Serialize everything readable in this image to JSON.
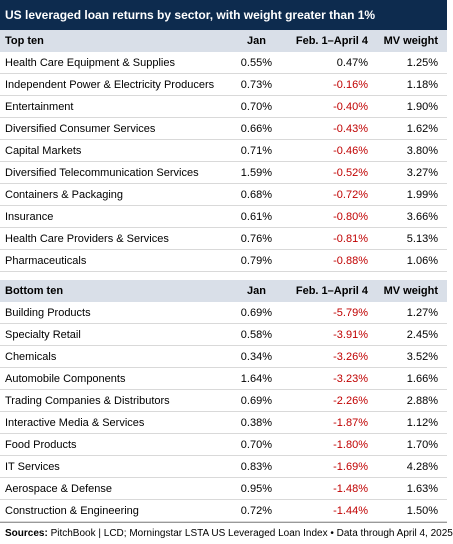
{
  "title": "US leveraged loan returns by sector, with weight greater than 1%",
  "sections": [
    {
      "header": [
        "Top ten",
        "Jan",
        "Feb. 1–April 4",
        "MV weight"
      ],
      "rows": [
        [
          "Health Care Equipment & Supplies",
          "0.55%",
          "0.47%",
          "1.25%"
        ],
        [
          "Independent Power & Electricity Producers",
          "0.73%",
          "-0.16%",
          "1.18%"
        ],
        [
          "Entertainment",
          "0.70%",
          "-0.40%",
          "1.90%"
        ],
        [
          "Diversified Consumer Services",
          "0.66%",
          "-0.43%",
          "1.62%"
        ],
        [
          "Capital Markets",
          "0.71%",
          "-0.46%",
          "3.80%"
        ],
        [
          "Diversified Telecommunication Services",
          "1.59%",
          "-0.52%",
          "3.27%"
        ],
        [
          "Containers & Packaging",
          "0.68%",
          "-0.72%",
          "1.99%"
        ],
        [
          "Insurance",
          "0.61%",
          "-0.80%",
          "3.66%"
        ],
        [
          "Health Care Providers & Services",
          "0.76%",
          "-0.81%",
          "5.13%"
        ],
        [
          "Pharmaceuticals",
          "0.79%",
          "-0.88%",
          "1.06%"
        ]
      ]
    },
    {
      "header": [
        "Bottom ten",
        "Jan",
        "Feb. 1–April 4",
        "MV weight"
      ],
      "rows": [
        [
          "Building Products",
          "0.69%",
          "-5.79%",
          "1.27%"
        ],
        [
          "Specialty Retail",
          "0.58%",
          "-3.91%",
          "2.45%"
        ],
        [
          "Chemicals",
          "0.34%",
          "-3.26%",
          "3.52%"
        ],
        [
          "Automobile Components",
          "1.64%",
          "-3.23%",
          "1.66%"
        ],
        [
          "Trading Companies & Distributors",
          "0.69%",
          "-2.26%",
          "2.88%"
        ],
        [
          "Interactive Media & Services",
          "0.38%",
          "-1.87%",
          "1.12%"
        ],
        [
          "Food Products",
          "0.70%",
          "-1.80%",
          "1.70%"
        ],
        [
          "IT Services",
          "0.83%",
          "-1.69%",
          "4.28%"
        ],
        [
          "Aerospace & Defense",
          "0.95%",
          "-1.48%",
          "1.63%"
        ],
        [
          "Construction & Engineering",
          "0.72%",
          "-1.44%",
          "1.50%"
        ]
      ]
    }
  ],
  "source_label": "Sources:",
  "source_text": "PitchBook | LCD; Morningstar LSTA US Leveraged Loan Index • Data through April 4, 2025"
}
